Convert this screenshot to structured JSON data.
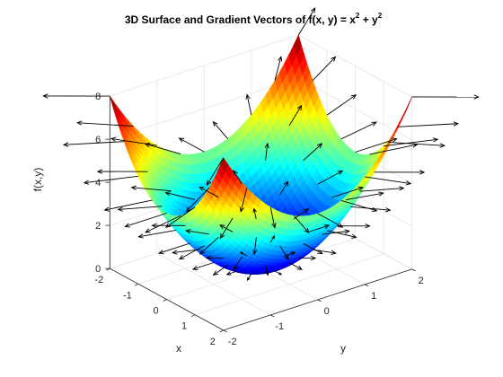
{
  "chart_data": {
    "type": "surface",
    "title": "3D Surface and Gradient Vectors of f(x, y) = x",
    "title_sup1": "2",
    "title_mid": " + y",
    "title_sup2": "2",
    "function": "f(x, y) = x^2 + y^2",
    "surface_style": "interpolated jet colormap",
    "overlay": "gradient vectors (quiver3), black",
    "xlabel": "x",
    "ylabel": "y",
    "zlabel": "f(x,y)",
    "xlim": [
      -2,
      2
    ],
    "ylim": [
      -2,
      2
    ],
    "zlim": [
      0,
      8
    ],
    "x_ticks": [
      "-2",
      "-1",
      "0",
      "1",
      "2"
    ],
    "y_ticks": [
      "-2",
      "-1",
      "0",
      "1",
      "2"
    ],
    "z_ticks": [
      "0",
      "2",
      "4",
      "6",
      "8"
    ],
    "grid": true,
    "box": "open 3D axes",
    "view": "isometric from the corner x = +, y = -",
    "sample_values": {
      "min": {
        "x": 0,
        "y": 0,
        "z": 0
      },
      "corners": [
        {
          "x": -2,
          "y": -2,
          "z": 8
        },
        {
          "x": 2,
          "y": -2,
          "z": 8
        },
        {
          "x": -2,
          "y": 2,
          "z": 8
        },
        {
          "x": 2,
          "y": 2,
          "z": 8
        }
      ],
      "edge_midpoints": [
        {
          "x": 2,
          "y": 0,
          "z": 4
        },
        {
          "x": 0,
          "y": 2,
          "z": 4
        },
        {
          "x": -2,
          "y": 0,
          "z": 4
        },
        {
          "x": 0,
          "y": -2,
          "z": 4
        }
      ]
    }
  }
}
